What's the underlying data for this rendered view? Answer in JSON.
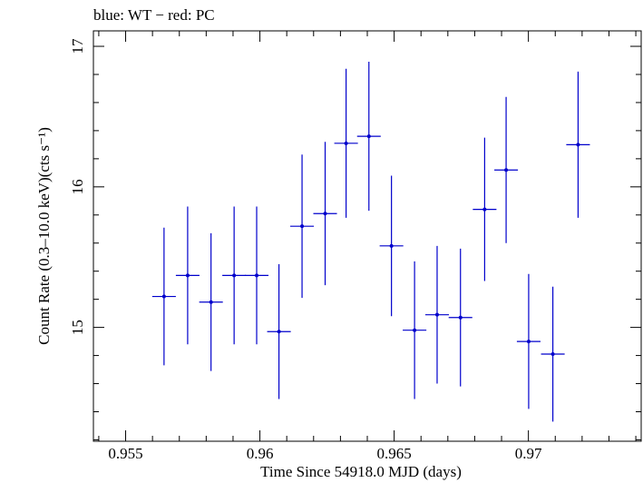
{
  "chart_data": {
    "type": "scatter",
    "title": "blue: WT − red: PC",
    "xlabel": "Time Since 54918.0 MJD (days)",
    "ylabel": "Count Rate (0.3–10.0 keV)(cts s⁻¹)",
    "xlim": [
      0.9538,
      0.9742
    ],
    "ylim": [
      14.19,
      17.11
    ],
    "x_ticks": [
      {
        "value": 0.955,
        "label": "0.955"
      },
      {
        "value": 0.96,
        "label": "0.96"
      },
      {
        "value": 0.965,
        "label": "0.965"
      },
      {
        "value": 0.97,
        "label": "0.97"
      }
    ],
    "y_ticks": [
      {
        "value": 15,
        "label": "15"
      },
      {
        "value": 16,
        "label": "16"
      },
      {
        "value": 17,
        "label": "17"
      }
    ],
    "grid": false,
    "series": [
      {
        "name": "WT",
        "color": "#0000cc",
        "points": [
          {
            "x": 0.95643,
            "xerr": 0.00044,
            "y": 15.22,
            "yerr": 0.49
          },
          {
            "x": 0.95731,
            "xerr": 0.00044,
            "y": 15.37,
            "yerr": 0.49
          },
          {
            "x": 0.95818,
            "xerr": 0.00044,
            "y": 15.18,
            "yerr": 0.49
          },
          {
            "x": 0.95904,
            "xerr": 0.00044,
            "y": 15.37,
            "yerr": 0.49
          },
          {
            "x": 0.95988,
            "xerr": 0.00044,
            "y": 15.37,
            "yerr": 0.49
          },
          {
            "x": 0.96071,
            "xerr": 0.00044,
            "y": 14.97,
            "yerr": 0.48
          },
          {
            "x": 0.96157,
            "xerr": 0.00044,
            "y": 15.72,
            "yerr": 0.51
          },
          {
            "x": 0.96243,
            "xerr": 0.00044,
            "y": 15.81,
            "yerr": 0.51
          },
          {
            "x": 0.96321,
            "xerr": 0.00044,
            "y": 16.31,
            "yerr": 0.53
          },
          {
            "x": 0.96406,
            "xerr": 0.00044,
            "y": 16.36,
            "yerr": 0.53
          },
          {
            "x": 0.9649,
            "xerr": 0.00044,
            "y": 15.58,
            "yerr": 0.5
          },
          {
            "x": 0.96576,
            "xerr": 0.00044,
            "y": 14.98,
            "yerr": 0.49
          },
          {
            "x": 0.9666,
            "xerr": 0.00044,
            "y": 15.09,
            "yerr": 0.49
          },
          {
            "x": 0.96747,
            "xerr": 0.00044,
            "y": 15.07,
            "yerr": 0.49
          },
          {
            "x": 0.96837,
            "xerr": 0.00044,
            "y": 15.84,
            "yerr": 0.51
          },
          {
            "x": 0.96917,
            "xerr": 0.00044,
            "y": 16.12,
            "yerr": 0.52
          },
          {
            "x": 0.97001,
            "xerr": 0.00044,
            "y": 14.9,
            "yerr": 0.48
          },
          {
            "x": 0.97091,
            "xerr": 0.00044,
            "y": 14.81,
            "yerr": 0.48
          },
          {
            "x": 0.97185,
            "xerr": 0.00044,
            "y": 16.3,
            "yerr": 0.52
          }
        ]
      }
    ]
  }
}
